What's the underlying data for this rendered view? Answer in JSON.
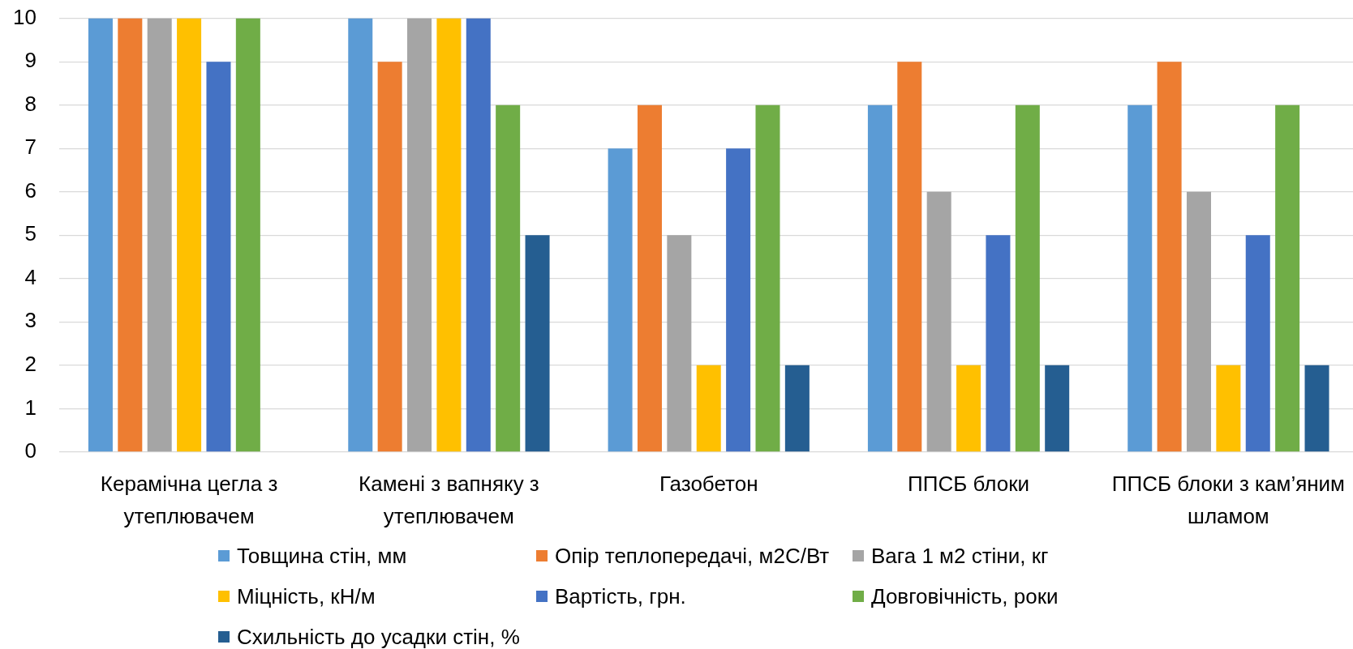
{
  "chart_data": {
    "type": "bar",
    "categories": [
      "Керамічна цегла з утеплювачем",
      "Камені з вапняку з утеплювачем",
      "Газобетон",
      "ППСБ блоки",
      "ППСБ блоки з кам’яним шламом"
    ],
    "series": [
      {
        "name": "Товщина стін, мм",
        "color": "#5b9bd5",
        "values": [
          10,
          10,
          7,
          8,
          8
        ]
      },
      {
        "name": "Опір теплопередачі, м2С/Вт",
        "color": "#ed7d31",
        "values": [
          10,
          9,
          8,
          9,
          9
        ]
      },
      {
        "name": "Вага 1 м2 стіни, кг",
        "color": "#a5a5a5",
        "values": [
          10,
          10,
          5,
          6,
          6
        ]
      },
      {
        "name": "Міцність, кН/м",
        "color": "#ffc000",
        "values": [
          10,
          10,
          2,
          2,
          2
        ]
      },
      {
        "name": "Вартість, грн.",
        "color": "#4472c4",
        "values": [
          9,
          10,
          7,
          5,
          5
        ]
      },
      {
        "name": "Довговічність, роки",
        "color": "#70ad47",
        "values": [
          10,
          8,
          8,
          8,
          8
        ]
      },
      {
        "name": "Схильність до усадки стін, %",
        "color": "#255e91",
        "values": [
          null,
          5,
          2,
          2,
          2
        ]
      }
    ],
    "ylim": [
      0,
      10
    ],
    "yticks": [
      0,
      1,
      2,
      3,
      4,
      5,
      6,
      7,
      8,
      9,
      10
    ],
    "grid": "y",
    "legend": "bottom"
  }
}
